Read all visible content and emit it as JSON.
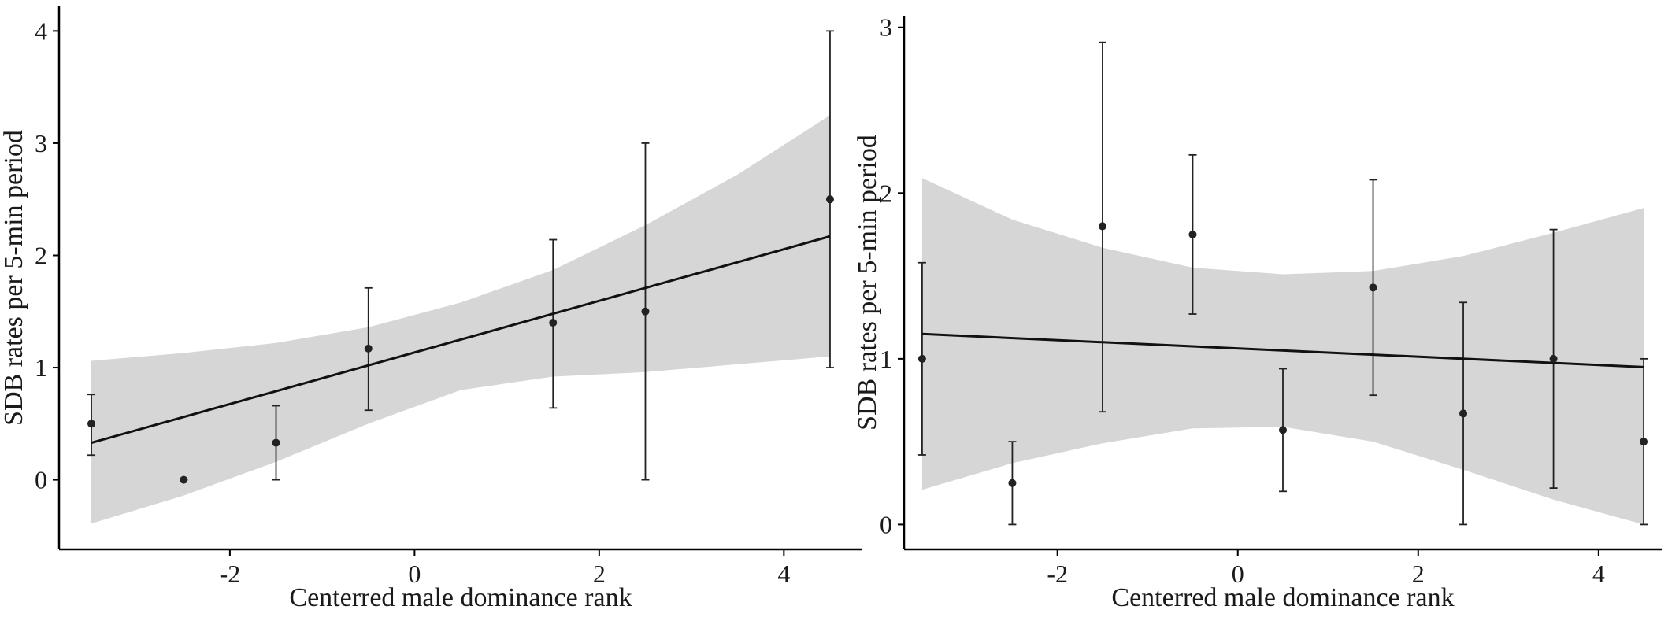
{
  "colors": {
    "band": "#d6d6d6",
    "line": "#111111",
    "points": "#222222"
  },
  "chart_data": [
    {
      "type": "scatter",
      "title": "",
      "xlabel": "Centerred male dominance rank",
      "ylabel": "SDB rates per 5-min period",
      "xlim": [
        -3.85,
        4.85
      ],
      "ylim": [
        -0.62,
        4.22
      ],
      "xticks": [
        -2,
        0,
        2,
        4
      ],
      "xtick_labels": [
        "-2",
        "0",
        "2",
        "4"
      ],
      "yticks": [
        0,
        1,
        2,
        3,
        4
      ],
      "ytick_labels": [
        "0",
        "1",
        "2",
        "3",
        "4"
      ],
      "grid": false,
      "legend": "none",
      "points": [
        {
          "x": -3.5,
          "y": 0.5,
          "low": 0.22,
          "high": 0.76
        },
        {
          "x": -2.5,
          "y": 0.0,
          "low": 0.0,
          "high": 0.0
        },
        {
          "x": -1.5,
          "y": 0.33,
          "low": 0.0,
          "high": 0.66
        },
        {
          "x": -0.5,
          "y": 1.17,
          "low": 0.62,
          "high": 1.71
        },
        {
          "x": 1.5,
          "y": 1.4,
          "low": 0.64,
          "high": 2.14
        },
        {
          "x": 2.5,
          "y": 1.5,
          "low": 0.0,
          "high": 3.0
        },
        {
          "x": 4.5,
          "y": 2.5,
          "low": 1.0,
          "high": 4.0
        }
      ],
      "fit_line": [
        {
          "x": -3.5,
          "y": 0.33
        },
        {
          "x": 4.5,
          "y": 2.17
        }
      ],
      "confidence_band": {
        "x": [
          -3.5,
          -2.5,
          -1.5,
          -0.5,
          0.5,
          1.5,
          2.5,
          3.5,
          4.5
        ],
        "upper": [
          1.06,
          1.13,
          1.22,
          1.36,
          1.58,
          1.87,
          2.27,
          2.72,
          3.25
        ],
        "lower": [
          -0.39,
          -0.14,
          0.16,
          0.5,
          0.8,
          0.92,
          0.96,
          1.03,
          1.1
        ]
      }
    },
    {
      "type": "scatter",
      "title": "",
      "xlabel": "Centerred male dominance rank",
      "ylabel": "SDB rates per 5-min period",
      "xlim": [
        -3.7,
        4.7
      ],
      "ylim": [
        -0.15,
        3.07
      ],
      "xticks": [
        -2,
        0,
        2,
        4
      ],
      "xtick_labels": [
        "-2",
        "0",
        "2",
        "4"
      ],
      "yticks": [
        0,
        1,
        2,
        3
      ],
      "ytick_labels": [
        "0",
        "1",
        "2",
        "3"
      ],
      "grid": false,
      "legend": "none",
      "points": [
        {
          "x": -3.5,
          "y": 1.0,
          "low": 0.42,
          "high": 1.58
        },
        {
          "x": -2.5,
          "y": 0.25,
          "low": 0.0,
          "high": 0.5
        },
        {
          "x": -1.5,
          "y": 1.8,
          "low": 0.68,
          "high": 2.91
        },
        {
          "x": -0.5,
          "y": 1.75,
          "low": 1.27,
          "high": 2.23
        },
        {
          "x": 0.5,
          "y": 0.57,
          "low": 0.2,
          "high": 0.94
        },
        {
          "x": 1.5,
          "y": 1.43,
          "low": 0.78,
          "high": 2.08
        },
        {
          "x": 2.5,
          "y": 0.67,
          "low": 0.0,
          "high": 1.34
        },
        {
          "x": 3.5,
          "y": 1.0,
          "low": 0.22,
          "high": 1.78
        },
        {
          "x": 4.5,
          "y": 0.5,
          "low": 0.0,
          "high": 1.0
        }
      ],
      "fit_line": [
        {
          "x": -3.5,
          "y": 1.15
        },
        {
          "x": 4.5,
          "y": 0.95
        }
      ],
      "confidence_band": {
        "x": [
          -3.5,
          -2.5,
          -1.5,
          -0.5,
          0.5,
          1.5,
          2.5,
          3.5,
          4.5
        ],
        "upper": [
          2.09,
          1.84,
          1.67,
          1.55,
          1.51,
          1.53,
          1.62,
          1.76,
          1.91
        ],
        "lower": [
          0.21,
          0.37,
          0.49,
          0.58,
          0.59,
          0.5,
          0.33,
          0.15,
          0.0
        ]
      }
    }
  ]
}
